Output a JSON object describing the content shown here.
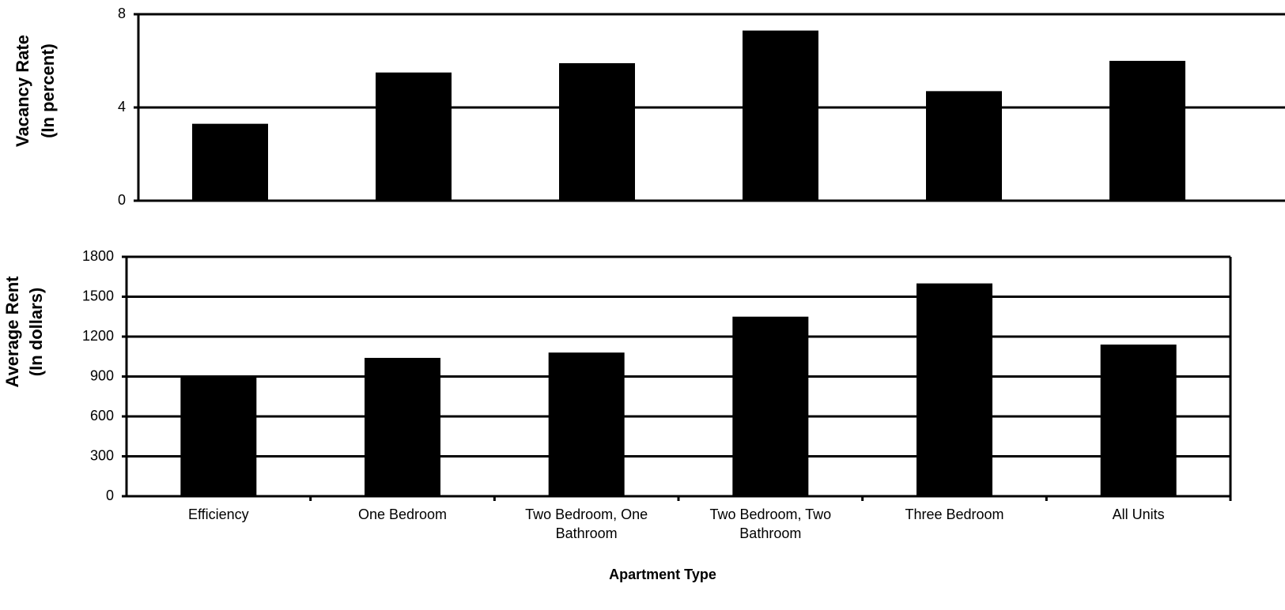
{
  "chart_data": [
    {
      "type": "bar",
      "ylabel": [
        "Vacancy Rate",
        "(In percent)"
      ],
      "categories": [
        null,
        null,
        null,
        null,
        null,
        null
      ],
      "values": [
        3.3,
        5.5,
        5.9,
        7.3,
        4.7,
        6.0
      ],
      "color": "#000000",
      "ylim": [
        0,
        8
      ],
      "yticks": [
        0,
        4,
        8
      ],
      "grid": true
    },
    {
      "type": "bar",
      "ylabel": [
        "Average Rent",
        "(In dollars)"
      ],
      "xlabel": "Apartment Type",
      "categories": [
        "Efficiency",
        "One Bedroom",
        "Two Bedroom, One Bathroom",
        "Two Bedroom, Two Bathroom",
        "Three Bedroom",
        "All Units"
      ],
      "values": [
        900,
        1040,
        1080,
        1350,
        1600,
        1140
      ],
      "color": "#000000",
      "ylim": [
        0,
        1800
      ],
      "yticks": [
        0,
        300,
        600,
        900,
        1200,
        1500,
        1800
      ],
      "grid": true
    }
  ]
}
